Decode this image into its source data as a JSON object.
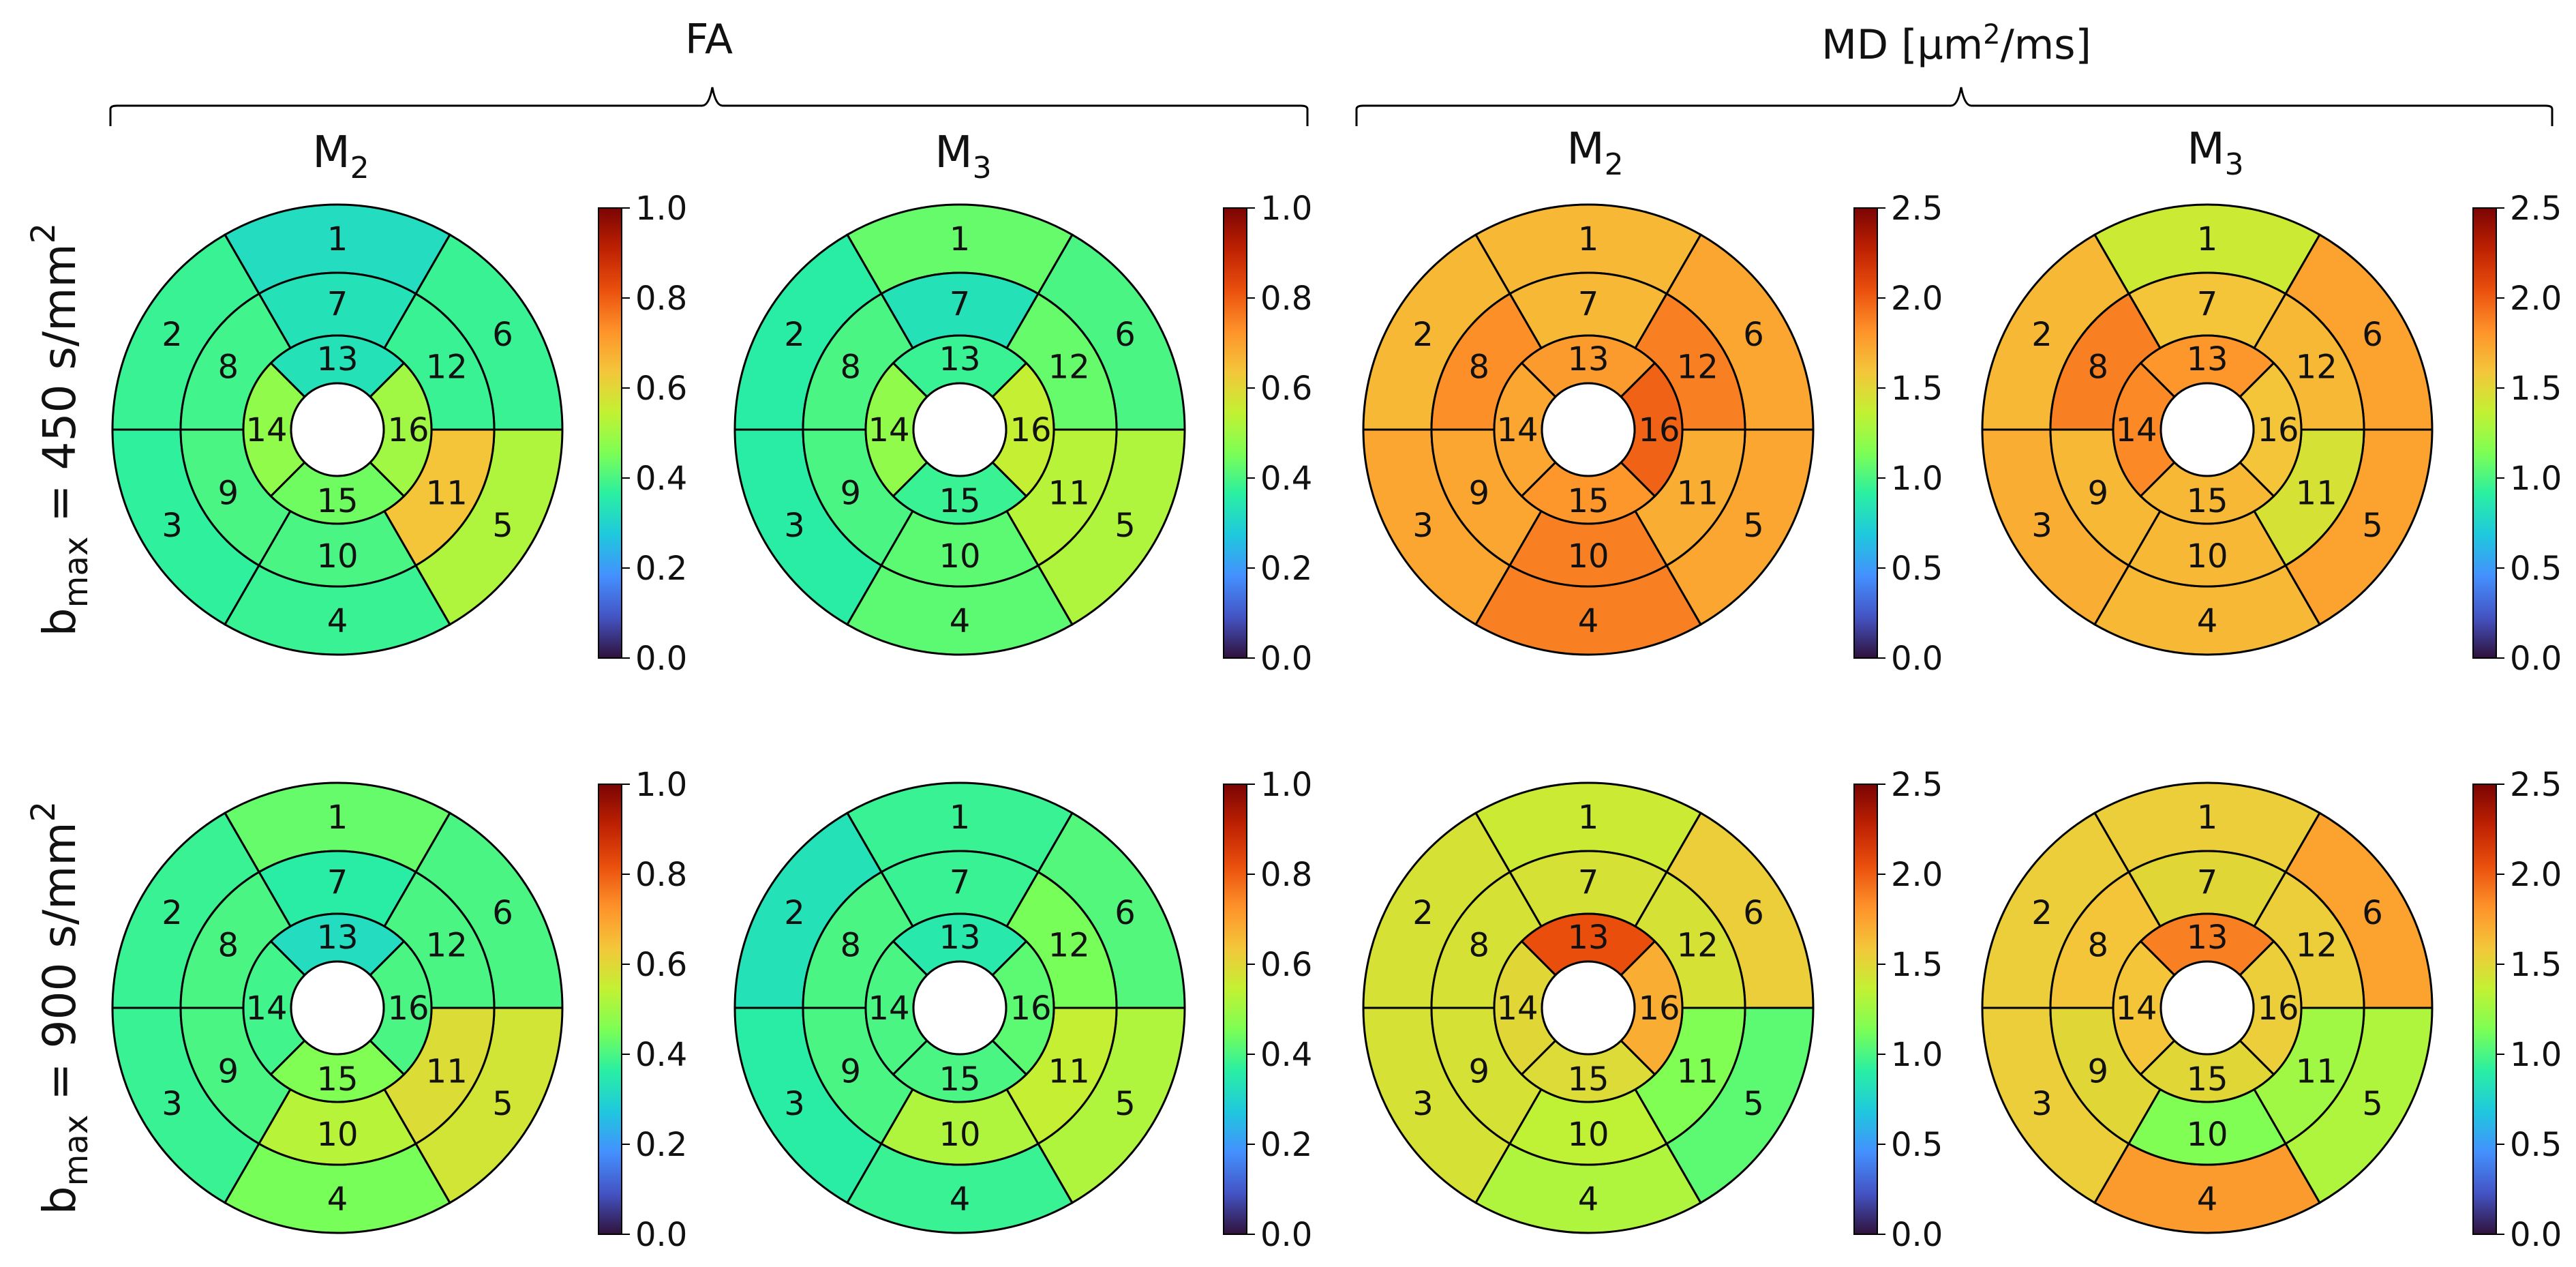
{
  "groups": [
    {
      "title": "FA"
    },
    {
      "title_prefix": "MD [",
      "title_unit_base": "μm",
      "title_unit_sup": "2",
      "title_suffix": "/ms]"
    }
  ],
  "column_headers": [
    {
      "base": "M",
      "sub": "2"
    },
    {
      "base": "M",
      "sub": "3"
    },
    {
      "base": "M",
      "sub": "2"
    },
    {
      "base": "M",
      "sub": "3"
    }
  ],
  "row_labels": [
    {
      "b": "b",
      "sub": "max",
      "eq": " = 450 s/mm",
      "sup": "2"
    },
    {
      "b": "b",
      "sub": "max",
      "eq": " = 900 s/mm",
      "sup": "2"
    }
  ],
  "colormap": {
    "name": "turbo",
    "stops": [
      "#30123b",
      "#4454c4",
      "#4490fe",
      "#1fc8de",
      "#29efa2",
      "#7cff55",
      "#c3f133",
      "#f4c63a",
      "#fe922a",
      "#ea4f0d",
      "#be2102",
      "#7a0403"
    ],
    "outline_color": "#000000",
    "background": "#ffffff"
  },
  "chart_data": {
    "type": "bullseye",
    "description": "AHA 16-segment bullseye plots of regional DTI metrics",
    "segment_labels": [
      "1",
      "2",
      "3",
      "4",
      "5",
      "6",
      "7",
      "8",
      "9",
      "10",
      "11",
      "12",
      "13",
      "14",
      "15",
      "16"
    ],
    "colorbars": [
      {
        "vmin": 0.0,
        "vmax": 1.0,
        "ticks": [
          "0.0",
          "0.2",
          "0.4",
          "0.6",
          "0.8",
          "1.0"
        ]
      },
      {
        "vmin": 0.0,
        "vmax": 2.5,
        "ticks": [
          "0.0",
          "0.5",
          "1.0",
          "1.5",
          "2.0",
          "2.5"
        ]
      }
    ],
    "panels": [
      {
        "row": 0,
        "col": 0,
        "metric": "FA",
        "model": "M2",
        "bmax": 450,
        "colorbar": 0,
        "values": [
          0.32,
          0.38,
          0.37,
          0.38,
          0.52,
          0.38,
          0.33,
          0.39,
          0.4,
          0.4,
          0.64,
          0.38,
          0.33,
          0.48,
          0.44,
          0.5
        ]
      },
      {
        "row": 0,
        "col": 1,
        "metric": "FA",
        "model": "M3",
        "bmax": 450,
        "colorbar": 0,
        "values": [
          0.43,
          0.36,
          0.36,
          0.42,
          0.52,
          0.4,
          0.33,
          0.4,
          0.4,
          0.42,
          0.53,
          0.43,
          0.38,
          0.48,
          0.38,
          0.55
        ]
      },
      {
        "row": 0,
        "col": 2,
        "metric": "MD",
        "model": "M2",
        "bmax": 450,
        "colorbar": 1,
        "values": [
          1.65,
          1.65,
          1.73,
          1.88,
          1.73,
          1.73,
          1.65,
          1.83,
          1.73,
          1.88,
          1.7,
          1.88,
          1.78,
          1.73,
          1.8,
          1.98
        ]
      },
      {
        "row": 0,
        "col": 3,
        "metric": "MD",
        "model": "M3",
        "bmax": 450,
        "colorbar": 1,
        "values": [
          1.4,
          1.65,
          1.7,
          1.65,
          1.75,
          1.75,
          1.6,
          1.88,
          1.65,
          1.65,
          1.45,
          1.65,
          1.8,
          1.85,
          1.65,
          1.6
        ]
      },
      {
        "row": 1,
        "col": 0,
        "metric": "FA",
        "model": "M2",
        "bmax": 900,
        "colorbar": 0,
        "values": [
          0.43,
          0.38,
          0.38,
          0.45,
          0.57,
          0.4,
          0.36,
          0.4,
          0.4,
          0.53,
          0.59,
          0.4,
          0.32,
          0.39,
          0.46,
          0.4
        ]
      },
      {
        "row": 1,
        "col": 1,
        "metric": "FA",
        "model": "M3",
        "bmax": 900,
        "colorbar": 0,
        "values": [
          0.38,
          0.33,
          0.36,
          0.38,
          0.52,
          0.41,
          0.38,
          0.4,
          0.4,
          0.52,
          0.55,
          0.45,
          0.35,
          0.4,
          0.4,
          0.42
        ]
      },
      {
        "row": 1,
        "col": 2,
        "metric": "MD",
        "model": "M2",
        "bmax": 900,
        "colorbar": 1,
        "values": [
          1.4,
          1.45,
          1.45,
          1.3,
          1.05,
          1.55,
          1.45,
          1.45,
          1.45,
          1.35,
          1.15,
          1.45,
          2.05,
          1.5,
          1.48,
          1.7
        ]
      },
      {
        "row": 1,
        "col": 3,
        "metric": "MD",
        "model": "M3",
        "bmax": 900,
        "colorbar": 1,
        "values": [
          1.55,
          1.55,
          1.55,
          1.78,
          1.3,
          1.75,
          1.5,
          1.6,
          1.5,
          1.15,
          1.25,
          1.55,
          1.88,
          1.6,
          1.5,
          1.55
        ]
      }
    ]
  }
}
